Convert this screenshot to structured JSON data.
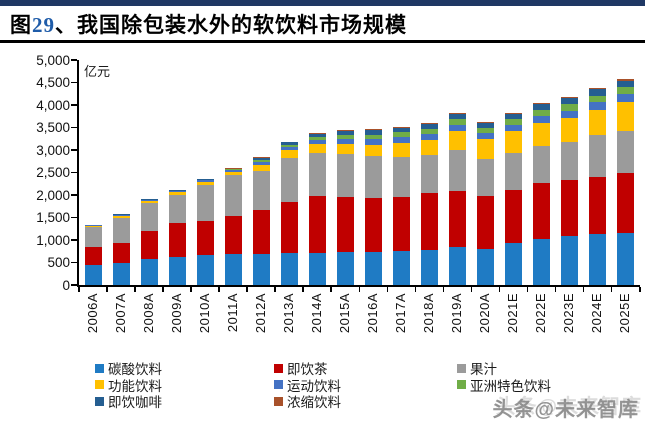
{
  "page": {
    "title_prefix": "图",
    "title_number": "29",
    "title_rest": "、我国除包装水外的软饮料市场规模",
    "watermark": "头条@未来智库"
  },
  "chart_data": {
    "type": "bar",
    "stacked": true,
    "title": "图29、我国除包装水外的软饮料市场规模",
    "unit_label": "亿元",
    "xlabel": "",
    "ylabel": "亿元",
    "ylim": [
      0,
      5000
    ],
    "ytick_interval": 500,
    "ytick_labels": [
      "0",
      "500",
      "1,000",
      "1,500",
      "2,000",
      "2,500",
      "3,000",
      "3,500",
      "4,000",
      "4,500",
      "5,000"
    ],
    "grid": false,
    "legend_position": "bottom",
    "categories": [
      "2006A",
      "2007A",
      "2008A",
      "2009A",
      "2010A",
      "2011A",
      "2012A",
      "2013A",
      "2014A",
      "2015A",
      "2016A",
      "2017A",
      "2018A",
      "2019A",
      "2020A",
      "2021E",
      "2022E",
      "2023E",
      "2024E",
      "2025E"
    ],
    "series": [
      {
        "name": "碳酸饮料",
        "color": "#1F7BC4",
        "values": [
          450,
          480,
          575,
          630,
          665,
          690,
          690,
          705,
          720,
          725,
          740,
          765,
          780,
          850,
          795,
          925,
          1015,
          1090,
          1125,
          1160
        ]
      },
      {
        "name": "即饮茶",
        "color": "#C00000",
        "values": [
          385,
          445,
          630,
          740,
          765,
          845,
          975,
          1145,
          1260,
          1225,
          1185,
          1200,
          1260,
          1240,
          1185,
          1185,
          1245,
          1245,
          1280,
          1335
        ]
      },
      {
        "name": "果汁",
        "color": "#9B9B9B",
        "values": [
          445,
          570,
          610,
          630,
          800,
          905,
          870,
          965,
          950,
          960,
          950,
          890,
          855,
          910,
          815,
          830,
          830,
          850,
          925,
          935
        ]
      },
      {
        "name": "功能饮料",
        "color": "#FFC000",
        "values": [
          30,
          38,
          48,
          58,
          64,
          76,
          133,
          185,
          200,
          222,
          244,
          300,
          330,
          420,
          460,
          490,
          520,
          535,
          570,
          645
        ]
      },
      {
        "name": "运动饮料",
        "color": "#4472C4",
        "values": [
          18,
          20,
          24,
          28,
          32,
          38,
          62,
          70,
          90,
          110,
          118,
          125,
          130,
          140,
          128,
          135,
          148,
          155,
          160,
          170
        ]
      },
      {
        "name": "亚洲特色饮料",
        "color": "#70AD47",
        "values": [
          8,
          9,
          11,
          13,
          15,
          18,
          40,
          45,
          60,
          90,
          100,
          110,
          118,
          125,
          115,
          120,
          135,
          145,
          150,
          150
        ]
      },
      {
        "name": "即饮咖啡",
        "color": "#255E91",
        "values": [
          6,
          7,
          9,
          11,
          13,
          16,
          50,
          55,
          70,
          95,
          100,
          105,
          110,
          115,
          105,
          110,
          120,
          130,
          140,
          145
        ]
      },
      {
        "name": "浓缩饮料",
        "color": "#A8512A",
        "values": [
          3,
          4,
          5,
          6,
          7,
          8,
          17,
          18,
          20,
          22,
          23,
          24,
          25,
          26,
          24,
          25,
          27,
          28,
          30,
          30
        ]
      }
    ]
  }
}
